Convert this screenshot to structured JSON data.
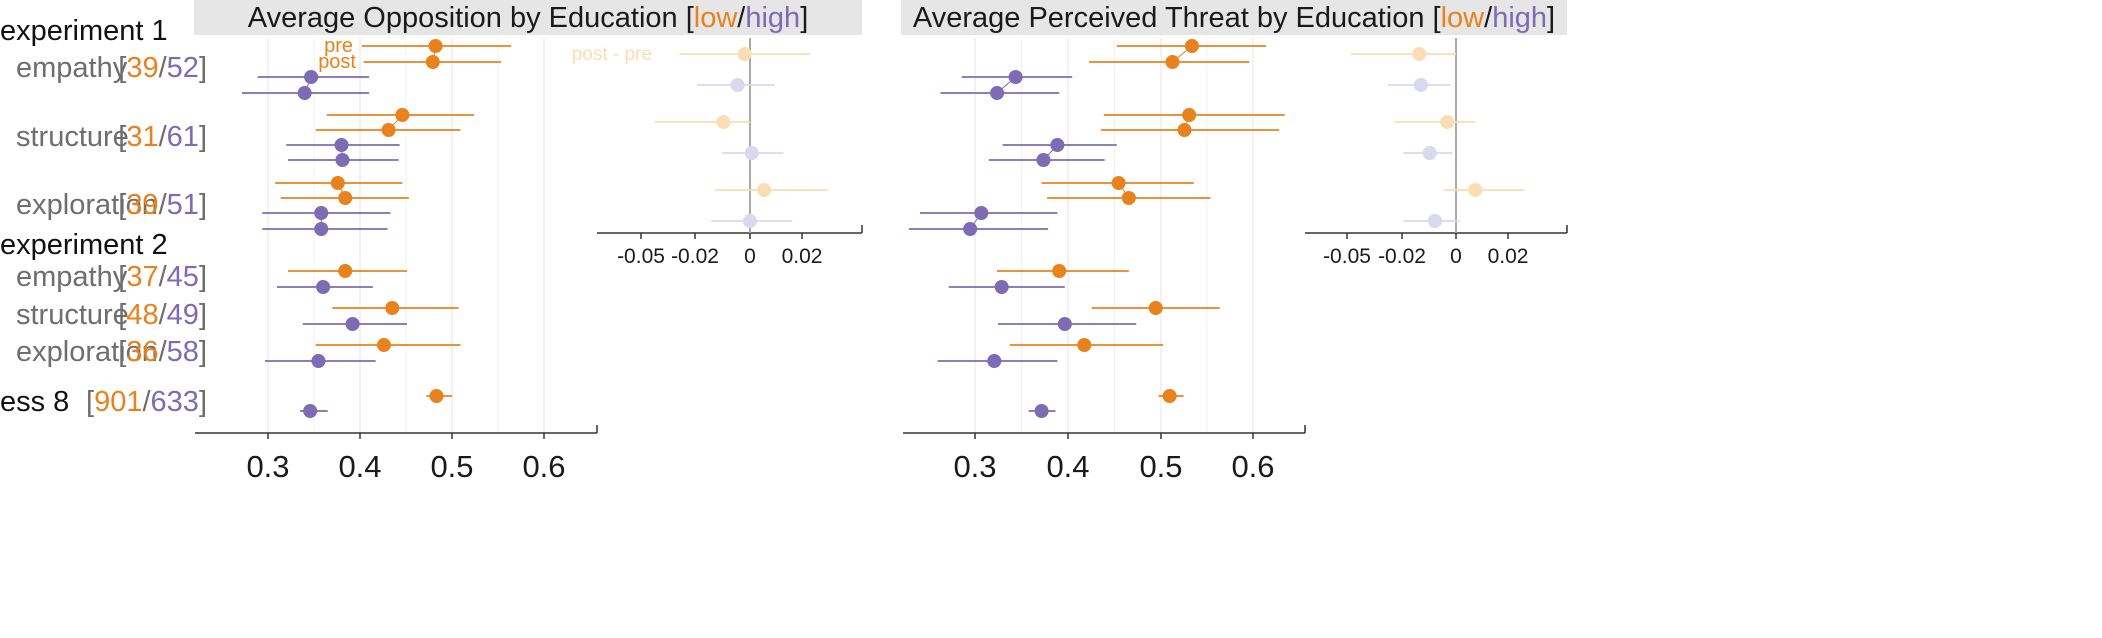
{
  "colors": {
    "low": "#E8821E",
    "high": "#7D6BB3",
    "low_faint": "#FBDDB5",
    "high_faint": "#D9D8EC",
    "title_bg": "#E6E6E6",
    "grid": "#E6E6E6",
    "axis": "#333333",
    "zero_line": "#AAAAAA"
  },
  "sections": [
    {
      "label": "experiment 1"
    },
    {
      "label": "experiment 2"
    }
  ],
  "rows": [
    {
      "label": "empathy",
      "n_low": "39",
      "n_high": "52"
    },
    {
      "label": "structure",
      "n_low": "31",
      "n_high": "61"
    },
    {
      "label": "exploration",
      "n_low": "39",
      "n_high": "51"
    },
    {
      "label": "empathy",
      "n_low": "37",
      "n_high": "45"
    },
    {
      "label": "structure",
      "n_low": "48",
      "n_high": "49"
    },
    {
      "label": "exploration",
      "n_low": "36",
      "n_high": "58"
    },
    {
      "label": "ess 8",
      "n_low": "901",
      "n_high": "633"
    }
  ],
  "legend": {
    "pre": "pre",
    "post": "post",
    "post_minus_pre": "post - pre"
  },
  "chart_data": [
    {
      "type": "dot-interval",
      "title_prefix": "Average Opposition by Education [",
      "title_low": "low",
      "title_sep": "/",
      "title_high": "high",
      "title_suffix": "]",
      "xlim": [
        0.23,
        0.66
      ],
      "xticks": [
        "0.3",
        "0.4",
        "0.5",
        "0.6"
      ],
      "grid": true,
      "series": [
        {
          "name": "low",
          "row": 0,
          "phase": "pre",
          "estimate": 0.485,
          "lower": 0.405,
          "upper": 0.567
        },
        {
          "name": "low",
          "row": 0,
          "phase": "post",
          "estimate": 0.482,
          "lower": 0.407,
          "upper": 0.556
        },
        {
          "name": "high",
          "row": 0,
          "phase": "pre",
          "estimate": 0.35,
          "lower": 0.292,
          "upper": 0.413
        },
        {
          "name": "high",
          "row": 0,
          "phase": "post",
          "estimate": 0.343,
          "lower": 0.275,
          "upper": 0.413
        },
        {
          "name": "low",
          "row": 1,
          "phase": "pre",
          "estimate": 0.449,
          "lower": 0.367,
          "upper": 0.527
        },
        {
          "name": "low",
          "row": 1,
          "phase": "post",
          "estimate": 0.434,
          "lower": 0.355,
          "upper": 0.512
        },
        {
          "name": "high",
          "row": 1,
          "phase": "pre",
          "estimate": 0.383,
          "lower": 0.323,
          "upper": 0.446
        },
        {
          "name": "high",
          "row": 1,
          "phase": "post",
          "estimate": 0.384,
          "lower": 0.325,
          "upper": 0.445
        },
        {
          "name": "low",
          "row": 2,
          "phase": "pre",
          "estimate": 0.379,
          "lower": 0.311,
          "upper": 0.449
        },
        {
          "name": "low",
          "row": 2,
          "phase": "post",
          "estimate": 0.387,
          "lower": 0.317,
          "upper": 0.456
        },
        {
          "name": "high",
          "row": 2,
          "phase": "pre",
          "estimate": 0.361,
          "lower": 0.297,
          "upper": 0.436
        },
        {
          "name": "high",
          "row": 2,
          "phase": "post",
          "estimate": 0.361,
          "lower": 0.297,
          "upper": 0.433
        },
        {
          "name": "low",
          "row": 3,
          "estimate": 0.387,
          "lower": 0.325,
          "upper": 0.454
        },
        {
          "name": "high",
          "row": 3,
          "estimate": 0.363,
          "lower": 0.313,
          "upper": 0.417
        },
        {
          "name": "low",
          "row": 4,
          "estimate": 0.438,
          "lower": 0.373,
          "upper": 0.51
        },
        {
          "name": "high",
          "row": 4,
          "estimate": 0.395,
          "lower": 0.341,
          "upper": 0.454
        },
        {
          "name": "low",
          "row": 5,
          "estimate": 0.429,
          "lower": 0.355,
          "upper": 0.512
        },
        {
          "name": "high",
          "row": 5,
          "estimate": 0.358,
          "lower": 0.3,
          "upper": 0.42
        },
        {
          "name": "low",
          "row": 6,
          "estimate": 0.486,
          "lower": 0.475,
          "upper": 0.503
        },
        {
          "name": "high",
          "row": 6,
          "estimate": 0.349,
          "lower": 0.338,
          "upper": 0.368
        }
      ],
      "differences": {
        "label": "post - pre",
        "xlim": [
          -0.067,
          0.062
        ],
        "xticks": [
          "-0.05",
          "-0.02",
          "0",
          "0.02"
        ],
        "values": [
          {
            "name": "low",
            "row": 0,
            "estimate": -0.003,
            "lower": -0.04,
            "upper": 0.034
          },
          {
            "name": "high",
            "row": 0,
            "estimate": -0.007,
            "lower": -0.03,
            "upper": 0.014
          },
          {
            "name": "low",
            "row": 1,
            "estimate": -0.015,
            "lower": -0.054,
            "upper": 0.0
          },
          {
            "name": "high",
            "row": 1,
            "estimate": 0.001,
            "lower": -0.016,
            "upper": 0.019
          },
          {
            "name": "low",
            "row": 2,
            "estimate": 0.008,
            "lower": -0.02,
            "upper": 0.044
          },
          {
            "name": "high",
            "row": 2,
            "estimate": 0.0,
            "lower": -0.022,
            "upper": 0.024
          }
        ]
      }
    },
    {
      "type": "dot-interval",
      "title_prefix": "Average Perceived Threat by Education [",
      "title_low": "low",
      "title_sep": "/",
      "title_high": "high",
      "title_suffix": "]",
      "xlim": [
        0.23,
        0.66
      ],
      "xticks": [
        "0.3",
        "0.4",
        "0.5",
        "0.6"
      ],
      "grid": true,
      "series": [
        {
          "name": "low",
          "row": 0,
          "phase": "pre",
          "estimate": 0.537,
          "lower": 0.456,
          "upper": 0.617
        },
        {
          "name": "low",
          "row": 0,
          "phase": "post",
          "estimate": 0.516,
          "lower": 0.426,
          "upper": 0.599
        },
        {
          "name": "high",
          "row": 0,
          "phase": "pre",
          "estimate": 0.347,
          "lower": 0.289,
          "upper": 0.408
        },
        {
          "name": "high",
          "row": 0,
          "phase": "post",
          "estimate": 0.327,
          "lower": 0.266,
          "upper": 0.394
        },
        {
          "name": "low",
          "row": 1,
          "phase": "pre",
          "estimate": 0.534,
          "lower": 0.442,
          "upper": 0.637
        },
        {
          "name": "low",
          "row": 1,
          "phase": "post",
          "estimate": 0.529,
          "lower": 0.439,
          "upper": 0.631
        },
        {
          "name": "high",
          "row": 1,
          "phase": "pre",
          "estimate": 0.392,
          "lower": 0.333,
          "upper": 0.456
        },
        {
          "name": "high",
          "row": 1,
          "phase": "post",
          "estimate": 0.377,
          "lower": 0.318,
          "upper": 0.443
        },
        {
          "name": "low",
          "row": 2,
          "phase": "pre",
          "estimate": 0.458,
          "lower": 0.375,
          "upper": 0.539
        },
        {
          "name": "low",
          "row": 2,
          "phase": "post",
          "estimate": 0.469,
          "lower": 0.381,
          "upper": 0.557
        },
        {
          "name": "high",
          "row": 2,
          "phase": "pre",
          "estimate": 0.31,
          "lower": 0.244,
          "upper": 0.392
        },
        {
          "name": "high",
          "row": 2,
          "phase": "post",
          "estimate": 0.298,
          "lower": 0.232,
          "upper": 0.382
        },
        {
          "name": "low",
          "row": 3,
          "estimate": 0.394,
          "lower": 0.327,
          "upper": 0.469
        },
        {
          "name": "high",
          "row": 3,
          "estimate": 0.332,
          "lower": 0.275,
          "upper": 0.4
        },
        {
          "name": "low",
          "row": 4,
          "estimate": 0.498,
          "lower": 0.429,
          "upper": 0.567
        },
        {
          "name": "high",
          "row": 4,
          "estimate": 0.4,
          "lower": 0.328,
          "upper": 0.477
        },
        {
          "name": "low",
          "row": 5,
          "estimate": 0.421,
          "lower": 0.341,
          "upper": 0.506
        },
        {
          "name": "high",
          "row": 5,
          "estimate": 0.324,
          "lower": 0.263,
          "upper": 0.392
        },
        {
          "name": "low",
          "row": 6,
          "estimate": 0.513,
          "lower": 0.501,
          "upper": 0.528
        },
        {
          "name": "high",
          "row": 6,
          "estimate": 0.375,
          "lower": 0.361,
          "upper": 0.39
        }
      ],
      "differences": {
        "label": "",
        "xlim": [
          -0.067,
          0.062
        ],
        "xticks": [
          "-0.05",
          "-0.02",
          "0",
          "0.02"
        ],
        "values": [
          {
            "name": "low",
            "row": 0,
            "estimate": -0.021,
            "lower": -0.06,
            "upper": 0.0
          },
          {
            "name": "high",
            "row": 0,
            "estimate": -0.02,
            "lower": -0.039,
            "upper": -0.003
          },
          {
            "name": "low",
            "row": 1,
            "estimate": -0.005,
            "lower": -0.035,
            "upper": 0.011
          },
          {
            "name": "high",
            "row": 1,
            "estimate": -0.015,
            "lower": -0.03,
            "upper": -0.002
          },
          {
            "name": "low",
            "row": 2,
            "estimate": 0.011,
            "lower": -0.007,
            "upper": 0.039
          },
          {
            "name": "high",
            "row": 2,
            "estimate": -0.012,
            "lower": -0.03,
            "upper": 0.002
          }
        ]
      }
    }
  ]
}
